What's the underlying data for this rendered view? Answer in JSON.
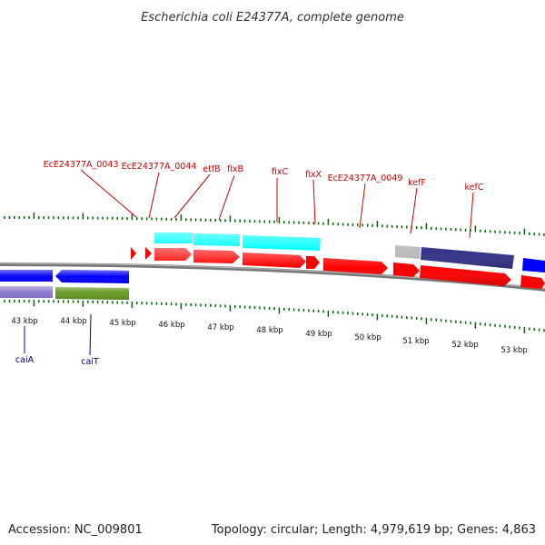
{
  "title": "Escherichia coli E24377A, complete genome",
  "footer": {
    "accession": "Accession: NC_009801",
    "stats": "Topology: circular; Length: 4,979,619 bp; Genes: 4,863"
  },
  "colors": {
    "forward_gene": "#ff0000",
    "reverse_gene": "#0000ff",
    "forward_cds_cyan": "#00ffff",
    "cds_navy": "#333388",
    "cds_lavender": "#8877cc",
    "cds_olive": "#669922",
    "cds_grey": "#bbbbbb",
    "tick": "#006600",
    "forward_label": "#cc0000",
    "reverse_label": "#000099"
  },
  "ticks": [
    {
      "label": "43 kbp"
    },
    {
      "label": "44 kbp"
    },
    {
      "label": "45 kbp"
    },
    {
      "label": "46 kbp"
    },
    {
      "label": "47 kbp"
    },
    {
      "label": "48 kbp"
    },
    {
      "label": "49 kbp"
    },
    {
      "label": "50 kbp"
    },
    {
      "label": "51 kbp"
    },
    {
      "label": "52 kbp"
    },
    {
      "label": "53 kbp"
    }
  ],
  "forward_labels": [
    {
      "name": "EcE24377A_0043"
    },
    {
      "name": "EcE24377A_0044"
    },
    {
      "name": "etfB"
    },
    {
      "name": "fixB"
    },
    {
      "name": "fixC"
    },
    {
      "name": "fixX"
    },
    {
      "name": "EcE24377A_0049"
    },
    {
      "name": "kefF"
    },
    {
      "name": "kefC"
    }
  ],
  "reverse_labels": [
    {
      "name": "caiA"
    },
    {
      "name": "caiT"
    }
  ]
}
